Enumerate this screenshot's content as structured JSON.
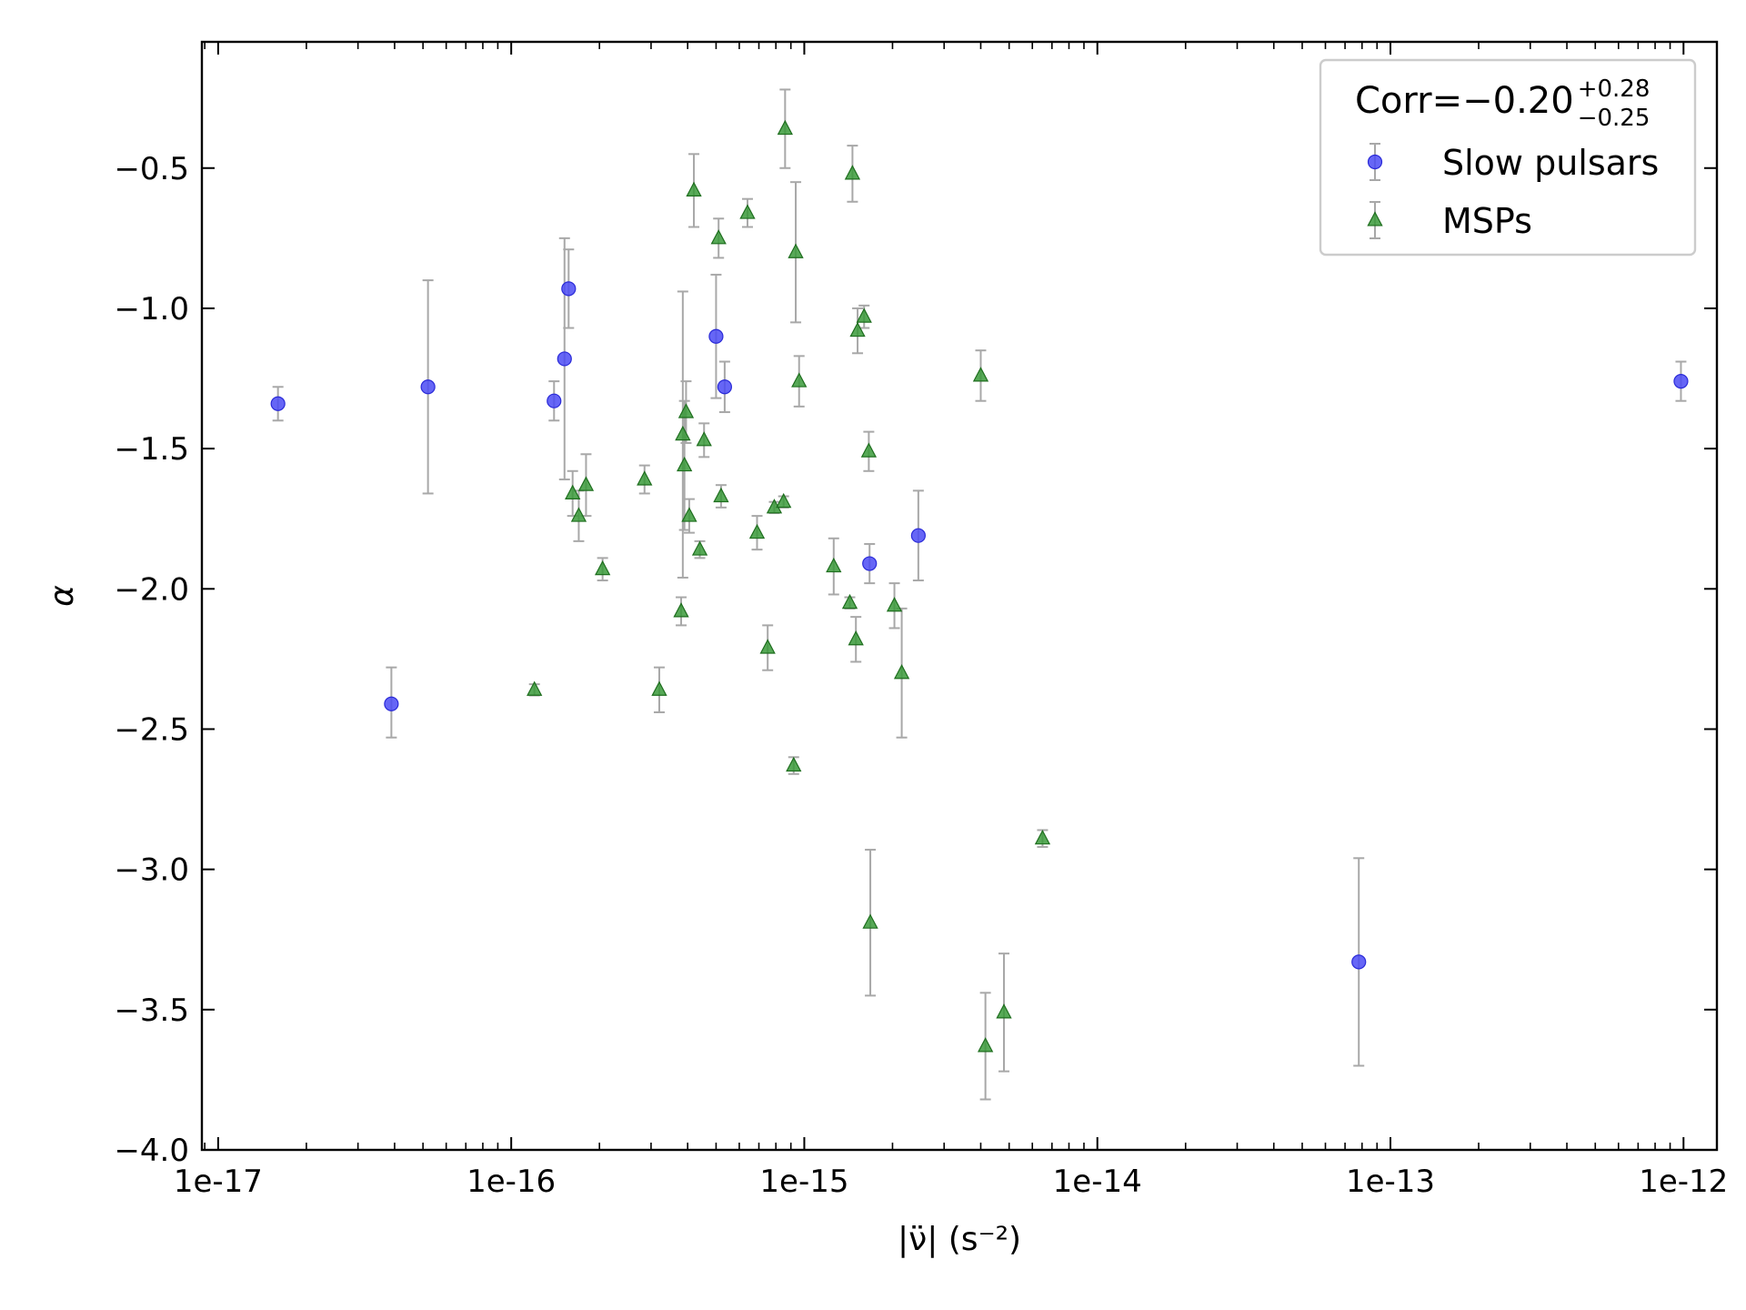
{
  "chart_data": {
    "type": "scatter",
    "xscale": "log",
    "xlim": [
      8.8e-18,
      1.3e-12
    ],
    "ylim": [
      -4.0,
      -0.05
    ],
    "xlabel": "|ν̈| (s⁻²)",
    "ylabel": "α",
    "xticks": [
      {
        "value": 1e-17,
        "label": "1e-17"
      },
      {
        "value": 1e-16,
        "label": "1e-16"
      },
      {
        "value": 1e-15,
        "label": "1e-15"
      },
      {
        "value": 1e-14,
        "label": "1e-14"
      },
      {
        "value": 1e-13,
        "label": "1e-13"
      },
      {
        "value": 1e-12,
        "label": "1e-12"
      }
    ],
    "yticks": [
      {
        "value": -0.5,
        "label": "−0.5"
      },
      {
        "value": -1.0,
        "label": "−1.0"
      },
      {
        "value": -1.5,
        "label": "−1.5"
      },
      {
        "value": -2.0,
        "label": "−2.0"
      },
      {
        "value": -2.5,
        "label": "−2.5"
      },
      {
        "value": -3.0,
        "label": "−3.0"
      },
      {
        "value": -3.5,
        "label": "−3.5"
      },
      {
        "value": -4.0,
        "label": "−4.0"
      }
    ],
    "grid": false,
    "legend": {
      "placement": "top-right",
      "title_prefix": "Corr=−0.20",
      "title_sup": "+0.28",
      "title_sub": "−0.25"
    },
    "colors": {
      "slow": "#4b4bf5",
      "msp": "#3a9a3a",
      "errorbar": "#a8a8a8"
    },
    "series": [
      {
        "name": "Slow pulsars",
        "marker": "circle",
        "points": [
          {
            "x": 1.6e-17,
            "y": -1.34,
            "lo": 0.06,
            "hi": 0.06
          },
          {
            "x": 3.9e-17,
            "y": -2.41,
            "lo": 0.12,
            "hi": 0.13
          },
          {
            "x": 5.2e-17,
            "y": -1.28,
            "lo": 0.38,
            "hi": 0.38
          },
          {
            "x": 1.4e-16,
            "y": -1.33,
            "lo": 0.07,
            "hi": 0.07
          },
          {
            "x": 1.52e-16,
            "y": -1.18,
            "lo": 0.43,
            "hi": 0.43
          },
          {
            "x": 1.57e-16,
            "y": -0.93,
            "lo": 0.14,
            "hi": 0.14
          },
          {
            "x": 5e-16,
            "y": -1.1,
            "lo": 0.22,
            "hi": 0.22
          },
          {
            "x": 5.35e-16,
            "y": -1.28,
            "lo": 0.09,
            "hi": 0.09
          },
          {
            "x": 1.67e-15,
            "y": -1.91,
            "lo": 0.07,
            "hi": 0.07
          },
          {
            "x": 2.45e-15,
            "y": -1.81,
            "lo": 0.16,
            "hi": 0.16
          },
          {
            "x": 7.8e-14,
            "y": -3.33,
            "lo": 0.37,
            "hi": 0.37
          },
          {
            "x": 9.8e-13,
            "y": -1.26,
            "lo": 0.07,
            "hi": 0.07
          }
        ]
      },
      {
        "name": "MSPs",
        "marker": "triangle",
        "points": [
          {
            "x": 1.2e-16,
            "y": -2.36,
            "lo": 0.02,
            "hi": 0.02
          },
          {
            "x": 1.62e-16,
            "y": -1.66,
            "lo": 0.08,
            "hi": 0.08
          },
          {
            "x": 1.7e-16,
            "y": -1.74,
            "lo": 0.09,
            "hi": 0.09
          },
          {
            "x": 1.8e-16,
            "y": -1.63,
            "lo": 0.11,
            "hi": 0.11
          },
          {
            "x": 2.05e-16,
            "y": -1.93,
            "lo": 0.04,
            "hi": 0.04
          },
          {
            "x": 2.85e-16,
            "y": -1.61,
            "lo": 0.05,
            "hi": 0.05
          },
          {
            "x": 3.2e-16,
            "y": -2.36,
            "lo": 0.08,
            "hi": 0.08
          },
          {
            "x": 3.8e-16,
            "y": -2.08,
            "lo": 0.05,
            "hi": 0.05
          },
          {
            "x": 3.85e-16,
            "y": -1.45,
            "lo": 0.51,
            "hi": 0.51
          },
          {
            "x": 3.9e-16,
            "y": -1.56,
            "lo": 0.23,
            "hi": 0.23
          },
          {
            "x": 3.95e-16,
            "y": -1.37,
            "lo": 0.11,
            "hi": 0.11
          },
          {
            "x": 4.05e-16,
            "y": -1.74,
            "lo": 0.06,
            "hi": 0.06
          },
          {
            "x": 4.2e-16,
            "y": -0.58,
            "lo": 0.13,
            "hi": 0.13
          },
          {
            "x": 4.4e-16,
            "y": -1.86,
            "lo": 0.03,
            "hi": 0.03
          },
          {
            "x": 4.55e-16,
            "y": -1.47,
            "lo": 0.06,
            "hi": 0.06
          },
          {
            "x": 5.1e-16,
            "y": -0.75,
            "lo": 0.07,
            "hi": 0.07
          },
          {
            "x": 5.2e-16,
            "y": -1.67,
            "lo": 0.04,
            "hi": 0.04
          },
          {
            "x": 6.4e-16,
            "y": -0.66,
            "lo": 0.05,
            "hi": 0.05
          },
          {
            "x": 6.9e-16,
            "y": -1.8,
            "lo": 0.06,
            "hi": 0.06
          },
          {
            "x": 7.5e-16,
            "y": -2.21,
            "lo": 0.08,
            "hi": 0.08
          },
          {
            "x": 7.9e-16,
            "y": -1.71,
            "lo": 0.02,
            "hi": 0.02
          },
          {
            "x": 8.5e-16,
            "y": -1.69,
            "lo": 0.02,
            "hi": 0.02
          },
          {
            "x": 8.6e-16,
            "y": -0.36,
            "lo": 0.14,
            "hi": 0.14
          },
          {
            "x": 9.2e-16,
            "y": -2.63,
            "lo": 0.03,
            "hi": 0.03
          },
          {
            "x": 9.35e-16,
            "y": -0.8,
            "lo": 0.25,
            "hi": 0.25
          },
          {
            "x": 9.6e-16,
            "y": -1.26,
            "lo": 0.09,
            "hi": 0.09
          },
          {
            "x": 1.26e-15,
            "y": -1.92,
            "lo": 0.1,
            "hi": 0.1
          },
          {
            "x": 1.43e-15,
            "y": -2.05,
            "lo": 0.02,
            "hi": 0.02
          },
          {
            "x": 1.46e-15,
            "y": -0.52,
            "lo": 0.1,
            "hi": 0.1
          },
          {
            "x": 1.5e-15,
            "y": -2.18,
            "lo": 0.08,
            "hi": 0.08
          },
          {
            "x": 1.52e-15,
            "y": -1.08,
            "lo": 0.08,
            "hi": 0.08
          },
          {
            "x": 1.6e-15,
            "y": -1.03,
            "lo": 0.04,
            "hi": 0.04
          },
          {
            "x": 1.66e-15,
            "y": -1.51,
            "lo": 0.07,
            "hi": 0.07
          },
          {
            "x": 1.68e-15,
            "y": -3.19,
            "lo": 0.26,
            "hi": 0.26
          },
          {
            "x": 2.03e-15,
            "y": -2.06,
            "lo": 0.08,
            "hi": 0.08
          },
          {
            "x": 2.15e-15,
            "y": -2.3,
            "lo": 0.23,
            "hi": 0.23
          },
          {
            "x": 4e-15,
            "y": -1.24,
            "lo": 0.09,
            "hi": 0.09
          },
          {
            "x": 4.15e-15,
            "y": -3.63,
            "lo": 0.19,
            "hi": 0.19
          },
          {
            "x": 4.8e-15,
            "y": -3.51,
            "lo": 0.21,
            "hi": 0.21
          },
          {
            "x": 6.5e-15,
            "y": -2.89,
            "lo": 0.03,
            "hi": 0.03
          }
        ]
      }
    ]
  }
}
